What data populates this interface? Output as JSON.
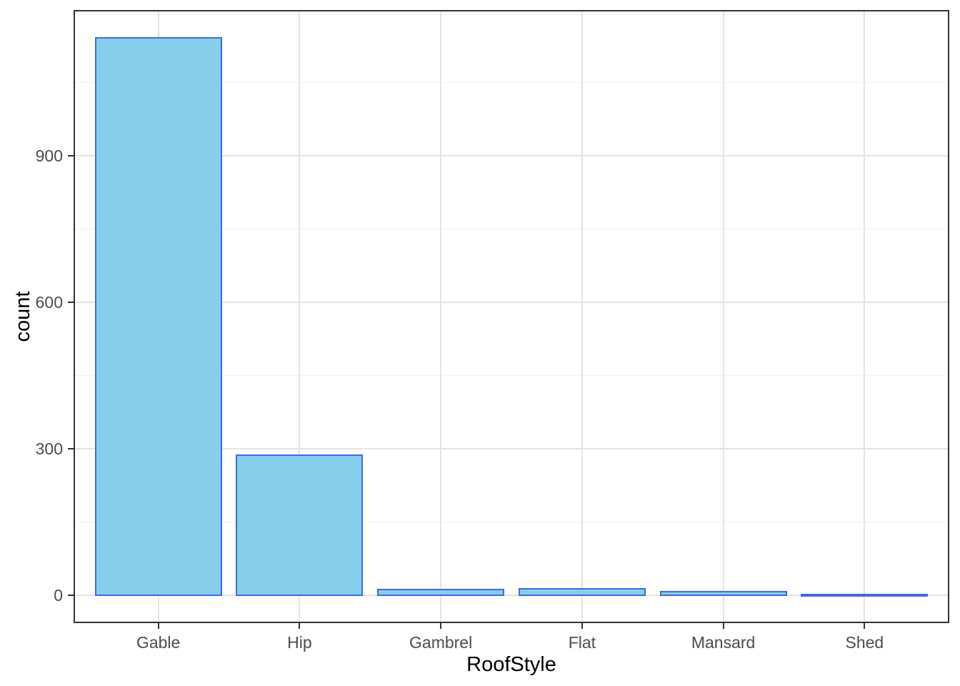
{
  "chart_data": {
    "type": "bar",
    "title": "",
    "xlabel": "RoofStyle",
    "ylabel": "count",
    "categories": [
      "Gable",
      "Hip",
      "Gambrel",
      "Flat",
      "Mansard",
      "Shed"
    ],
    "values": [
      1141,
      286,
      11,
      13,
      7,
      2
    ],
    "y_ticks": [
      0,
      300,
      600,
      900
    ],
    "y_minor_ticks": [
      150,
      450,
      750,
      1050
    ],
    "ylim": [
      -57,
      1198
    ],
    "bar_width_fraction": 0.9,
    "grid": true,
    "legend": false,
    "style": {
      "bar_fill": "#87CEEB",
      "bar_stroke": "#4169E1",
      "panel_border": "#333333",
      "grid_major": "#E4E4E4",
      "grid_minor": "#F2F2F2",
      "tick_color": "#333333",
      "axis_text": "#4D4D4D",
      "axis_title": "#000000",
      "background": "#FFFFFF"
    }
  }
}
